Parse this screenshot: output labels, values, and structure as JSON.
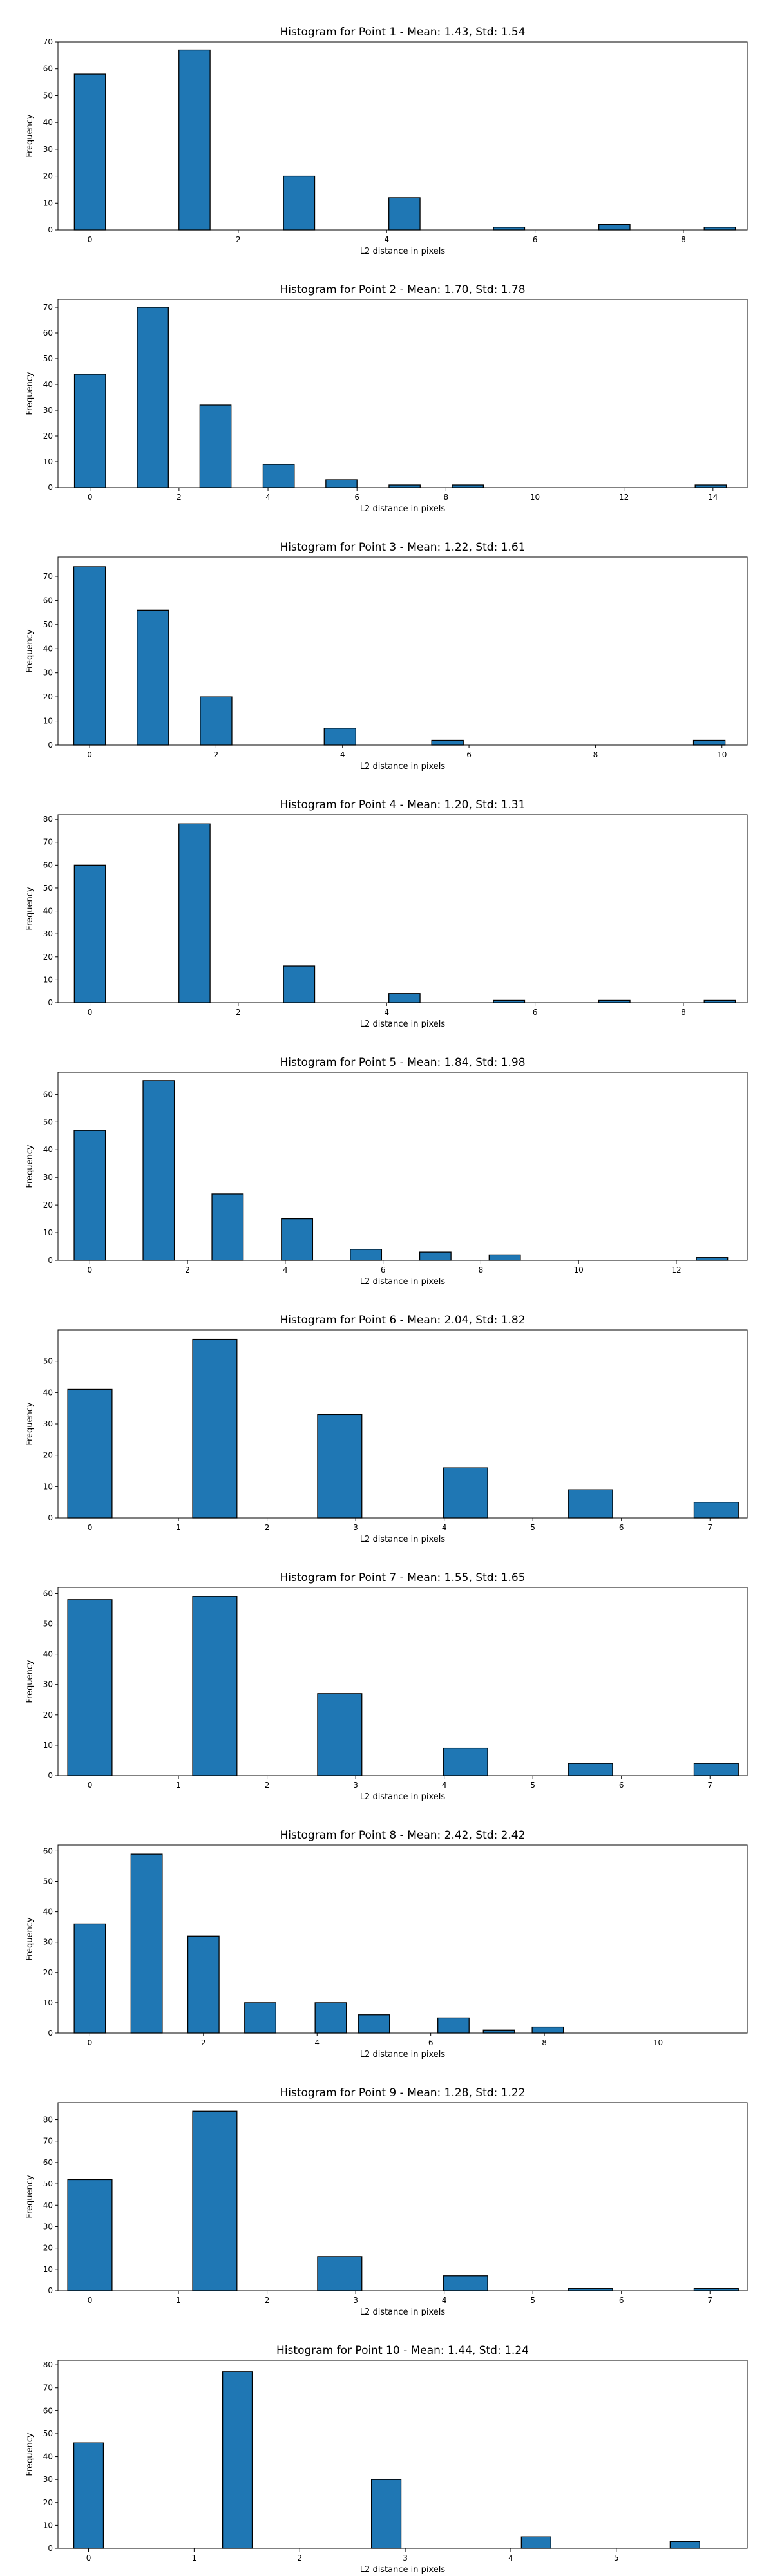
{
  "chart_data": [
    {
      "type": "bar",
      "title": "Histogram for Point 1 - Mean: 1.43, Std: 1.54",
      "xlabel": "L2 distance in pixels",
      "ylabel": "Frequency",
      "xlim": [
        -0.43,
        8.86
      ],
      "ylim": [
        0,
        70
      ],
      "xticks": [
        0,
        2,
        4,
        6,
        8
      ],
      "yticks": [
        0,
        10,
        20,
        30,
        40,
        50,
        60,
        70
      ],
      "bin_width": 0.42,
      "bins": [
        [
          0,
          58
        ],
        [
          1.41,
          67
        ],
        [
          2.82,
          20
        ],
        [
          4.24,
          12
        ],
        [
          5.65,
          1
        ],
        [
          7.07,
          2
        ],
        [
          8.49,
          1
        ]
      ],
      "grid": false
    },
    {
      "type": "bar",
      "title": "Histogram for Point 2 - Mean: 1.70, Std: 1.78",
      "xlabel": "L2 distance in pixels",
      "ylabel": "Frequency",
      "xlim": [
        -0.72,
        14.77
      ],
      "ylim": [
        0,
        73
      ],
      "xticks": [
        0,
        2,
        4,
        6,
        8,
        10,
        12,
        14
      ],
      "yticks": [
        0,
        10,
        20,
        30,
        40,
        50,
        60,
        70
      ],
      "bin_width": 0.7,
      "bins": [
        [
          0,
          44
        ],
        [
          1.41,
          70
        ],
        [
          2.82,
          32
        ],
        [
          4.24,
          9
        ],
        [
          5.65,
          3
        ],
        [
          7.07,
          1
        ],
        [
          8.49,
          1
        ],
        [
          13.95,
          1
        ]
      ],
      "grid": false
    },
    {
      "type": "bar",
      "title": "Histogram for Point 3 - Mean: 1.22, Std: 1.61",
      "xlabel": "L2 distance in pixels",
      "ylabel": "Frequency",
      "xlim": [
        -0.5,
        10.4
      ],
      "ylim": [
        0,
        78
      ],
      "xticks": [
        0,
        2,
        4,
        6,
        8,
        10
      ],
      "yticks": [
        0,
        10,
        20,
        30,
        40,
        50,
        60,
        70
      ],
      "bin_width": 0.5,
      "bins": [
        [
          0,
          74
        ],
        [
          1.0,
          56
        ],
        [
          2.0,
          20
        ],
        [
          3.96,
          7
        ],
        [
          5.66,
          2
        ],
        [
          9.8,
          2
        ]
      ],
      "grid": false
    },
    {
      "type": "bar",
      "title": "Histogram for Point 4 - Mean: 1.20, Std: 1.31",
      "xlabel": "L2 distance in pixels",
      "ylabel": "Frequency",
      "xlim": [
        -0.43,
        8.86
      ],
      "ylim": [
        0,
        82
      ],
      "xticks": [
        0,
        2,
        4,
        6,
        8
      ],
      "yticks": [
        0,
        10,
        20,
        30,
        40,
        50,
        60,
        70,
        80
      ],
      "bin_width": 0.42,
      "bins": [
        [
          0,
          60
        ],
        [
          1.41,
          78
        ],
        [
          2.82,
          16
        ],
        [
          4.24,
          4
        ],
        [
          5.65,
          1
        ],
        [
          7.07,
          1
        ],
        [
          8.49,
          1
        ]
      ],
      "grid": false
    },
    {
      "type": "bar",
      "title": "Histogram for Point 5 - Mean: 1.84, Std: 1.98",
      "xlabel": "L2 distance in pixels",
      "ylabel": "Frequency",
      "xlim": [
        -0.65,
        13.45
      ],
      "ylim": [
        0,
        68
      ],
      "xticks": [
        0,
        2,
        4,
        6,
        8,
        10,
        12
      ],
      "yticks": [
        0,
        10,
        20,
        30,
        40,
        50,
        60
      ],
      "bin_width": 0.64,
      "bins": [
        [
          0,
          47
        ],
        [
          1.41,
          65
        ],
        [
          2.82,
          24
        ],
        [
          4.24,
          15
        ],
        [
          5.65,
          4
        ],
        [
          7.07,
          3
        ],
        [
          8.49,
          2
        ],
        [
          12.73,
          1
        ]
      ],
      "grid": false
    },
    {
      "type": "bar",
      "title": "Histogram for Point 6 - Mean: 2.04, Std: 1.82",
      "xlabel": "L2 distance in pixels",
      "ylabel": "Frequency",
      "xlim": [
        -0.36,
        7.42
      ],
      "ylim": [
        0,
        60
      ],
      "xticks": [
        0,
        1,
        2,
        3,
        4,
        5,
        6,
        7
      ],
      "yticks": [
        0,
        10,
        20,
        30,
        40,
        50
      ],
      "bin_width": 0.5,
      "bins": [
        [
          0,
          41
        ],
        [
          1.41,
          57
        ],
        [
          2.82,
          33
        ],
        [
          4.24,
          16
        ],
        [
          5.65,
          9
        ],
        [
          7.07,
          5
        ]
      ],
      "grid": false
    },
    {
      "type": "bar",
      "title": "Histogram for Point 7 - Mean: 1.55, Std: 1.65",
      "xlabel": "L2 distance in pixels",
      "ylabel": "Frequency",
      "xlim": [
        -0.36,
        7.42
      ],
      "ylim": [
        0,
        62
      ],
      "xticks": [
        0,
        1,
        2,
        3,
        4,
        5,
        6,
        7
      ],
      "yticks": [
        0,
        10,
        20,
        30,
        40,
        50,
        60
      ],
      "bin_width": 0.5,
      "bins": [
        [
          0,
          58
        ],
        [
          1.41,
          59
        ],
        [
          2.82,
          27
        ],
        [
          4.24,
          9
        ],
        [
          5.65,
          4
        ],
        [
          7.07,
          4
        ]
      ],
      "grid": false
    },
    {
      "type": "bar",
      "title": "Histogram for Point 8 - Mean: 2.42, Std: 2.42",
      "xlabel": "L2 distance in pixels",
      "ylabel": "Frequency",
      "xlim": [
        -0.56,
        11.57
      ],
      "ylim": [
        0,
        62
      ],
      "xticks": [
        0,
        2,
        4,
        6,
        8,
        10
      ],
      "yticks": [
        0,
        10,
        20,
        30,
        40,
        50,
        60
      ],
      "bin_width": 0.55,
      "bins": [
        [
          0,
          36
        ],
        [
          1.0,
          59
        ],
        [
          2.0,
          32
        ],
        [
          3.0,
          10
        ],
        [
          4.24,
          10
        ],
        [
          5.0,
          6
        ],
        [
          6.4,
          5
        ],
        [
          7.2,
          1
        ],
        [
          8.06,
          2
        ]
      ],
      "grid": false
    },
    {
      "type": "bar",
      "title": "Histogram for Point 9 - Mean: 1.28, Std: 1.22",
      "xlabel": "L2 distance in pixels",
      "ylabel": "Frequency",
      "xlim": [
        -0.36,
        7.42
      ],
      "ylim": [
        0,
        88
      ],
      "xticks": [
        0,
        1,
        2,
        3,
        4,
        5,
        6,
        7
      ],
      "yticks": [
        0,
        10,
        20,
        30,
        40,
        50,
        60,
        70,
        80
      ],
      "bin_width": 0.5,
      "bins": [
        [
          0,
          52
        ],
        [
          1.41,
          84
        ],
        [
          2.82,
          16
        ],
        [
          4.24,
          7
        ],
        [
          5.65,
          1
        ],
        [
          7.07,
          1
        ]
      ],
      "grid": false
    },
    {
      "type": "bar",
      "title": "Histogram for Point 10 - Mean: 1.44, Std: 1.24",
      "xlabel": "L2 distance in pixels",
      "ylabel": "Frequency",
      "xlim": [
        -0.29,
        6.24
      ],
      "ylim": [
        0,
        82
      ],
      "xticks": [
        0,
        1,
        2,
        3,
        4,
        5
      ],
      "yticks": [
        0,
        10,
        20,
        30,
        40,
        50,
        60,
        70,
        80
      ],
      "bin_width": 0.28,
      "bins": [
        [
          0,
          46
        ],
        [
          1.41,
          77
        ],
        [
          2.82,
          30
        ],
        [
          4.24,
          5
        ],
        [
          5.65,
          3
        ]
      ],
      "grid": false
    }
  ]
}
